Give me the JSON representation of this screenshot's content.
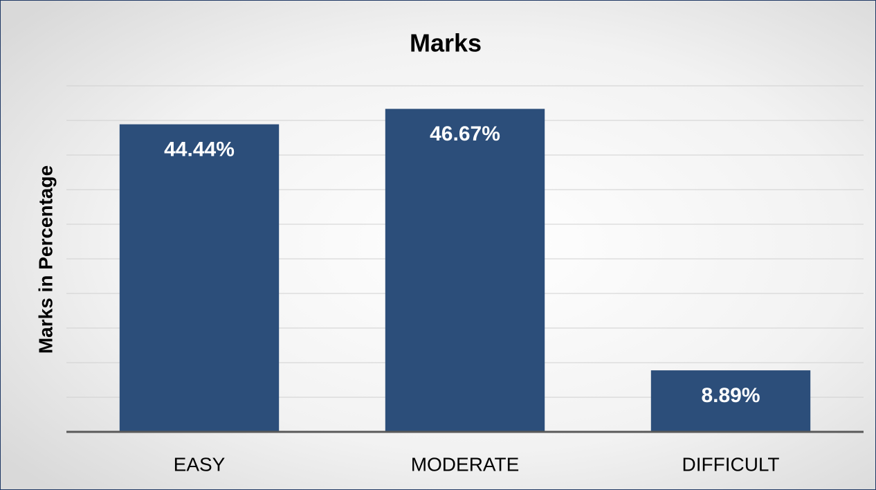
{
  "chart_data": {
    "type": "bar",
    "title": "Marks",
    "ylabel": "Marks in Percentage",
    "categories": [
      "EASY",
      "MODERATE",
      "DIFFICULT"
    ],
    "values": [
      44.44,
      46.67,
      8.89
    ],
    "value_labels": [
      "44.44%",
      "46.67%",
      "8.89%"
    ],
    "color": "#2c4e7a",
    "ylim": [
      0,
      50
    ],
    "yticks": [
      0,
      5,
      10,
      15,
      20,
      25,
      30,
      35,
      40,
      45,
      50
    ],
    "show_tick_labels": false,
    "grid": true
  }
}
